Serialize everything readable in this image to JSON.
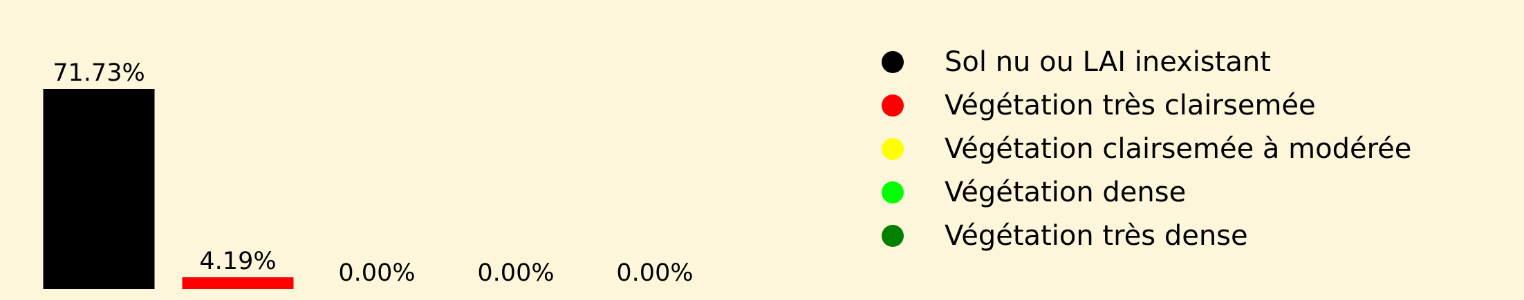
{
  "chart_data": {
    "type": "bar",
    "categories": [
      "Sol nu ou LAI inexistant",
      "Végétation très clairsemée",
      "Végétation clairsemée à modérée",
      "Végétation dense",
      "Végétation très dense"
    ],
    "values": [
      71.73,
      4.19,
      0.0,
      0.0,
      0.0
    ],
    "value_labels": [
      "71.73%",
      "4.19%",
      "0.00%",
      "0.00%",
      "0.00%"
    ],
    "colors": [
      "#000000",
      "#ff0000",
      "#ffff00",
      "#00ff00",
      "#008000"
    ],
    "background": "#fdf6da",
    "ylim": [
      0,
      80
    ],
    "grid": false,
    "axes_visible": false,
    "legend_position": "right",
    "legend_marker": "circle"
  }
}
